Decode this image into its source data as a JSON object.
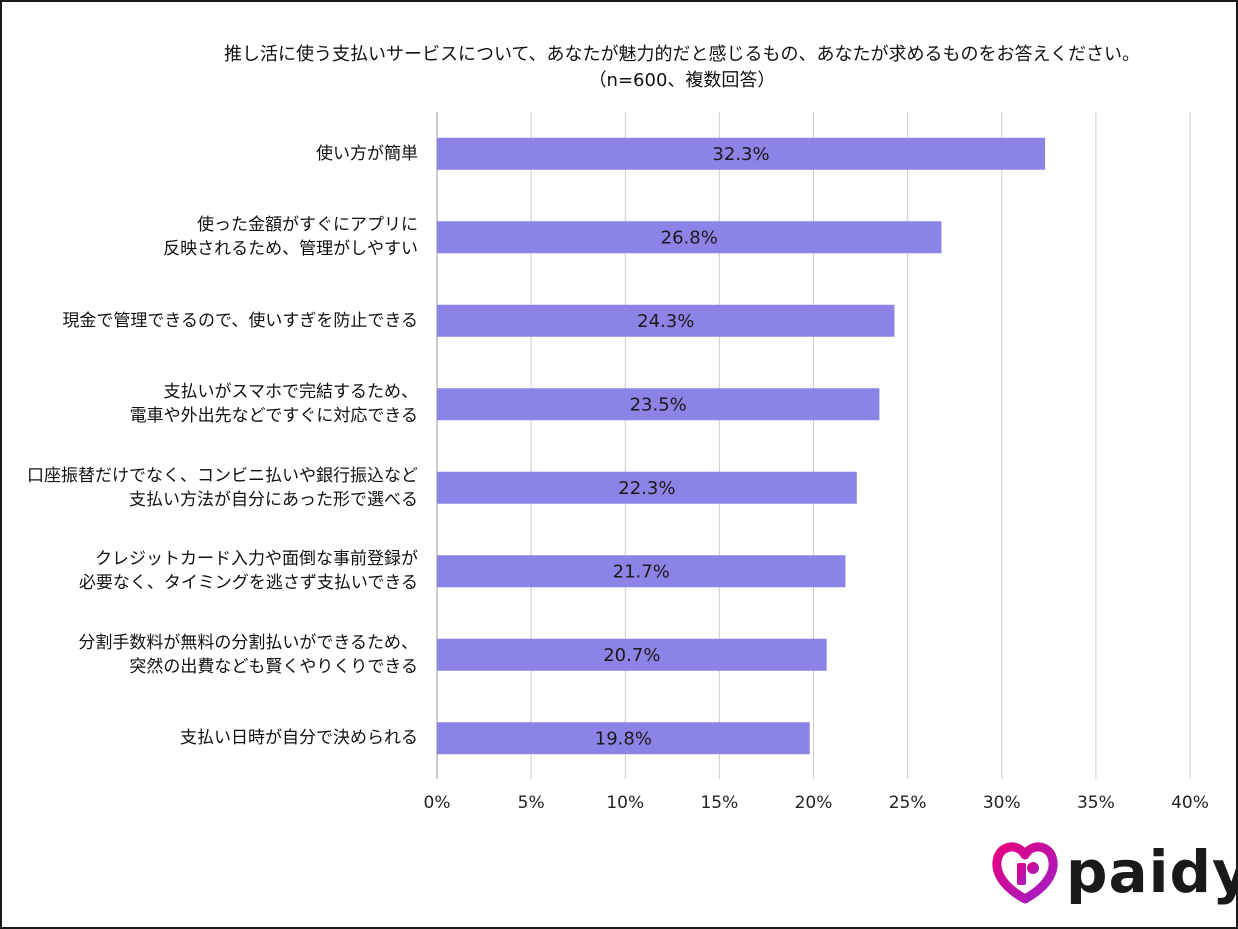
{
  "chart_data": {
    "type": "bar",
    "orientation": "horizontal",
    "title": "推し活に使う支払いサービスについて、あなたが魅力的だと感じるもの、あなたが求めるものをお答えください。",
    "subtitle": "（n=600、複数回答）",
    "categories": [
      "使い方が簡単",
      "使った金額がすぐにアプリに\n反映されるため、管理がしやすい",
      "現金で管理できるので、使いすぎを防止できる",
      "支払いがスマホで完結するため、\n電車や外出先などですぐに対応できる",
      "口座振替だけでなく、コンビニ払いや銀行振込など\n支払い方法が自分にあった形で選べる",
      "クレジットカード入力や面倒な事前登録が\n必要なく、タイミングを逃さず支払いできる",
      "分割手数料が無料の分割払いができるため、\n突然の出費なども賢くやりくりできる",
      "支払い日時が自分で決められる"
    ],
    "values": [
      32.3,
      26.8,
      24.3,
      23.5,
      22.3,
      21.7,
      20.7,
      19.8
    ],
    "data_labels": [
      "32.3%",
      "26.8%",
      "24.3%",
      "23.5%",
      "22.3%",
      "21.7%",
      "20.7%",
      "19.8%"
    ],
    "xlim": [
      0,
      40
    ],
    "xticks": [
      0,
      5,
      10,
      15,
      20,
      25,
      30,
      35,
      40
    ],
    "xtick_labels": [
      "0%",
      "5%",
      "10%",
      "15%",
      "20%",
      "25%",
      "30%",
      "35%",
      "40%"
    ],
    "xlabel": "",
    "ylabel": "",
    "grid": "vertical",
    "legend": "none",
    "bar_color": "#8b84e6",
    "grid_color": "#cccccc"
  },
  "brand": {
    "name": "paidy",
    "logo_gradient": [
      "#e4007f",
      "#a020c8"
    ]
  }
}
